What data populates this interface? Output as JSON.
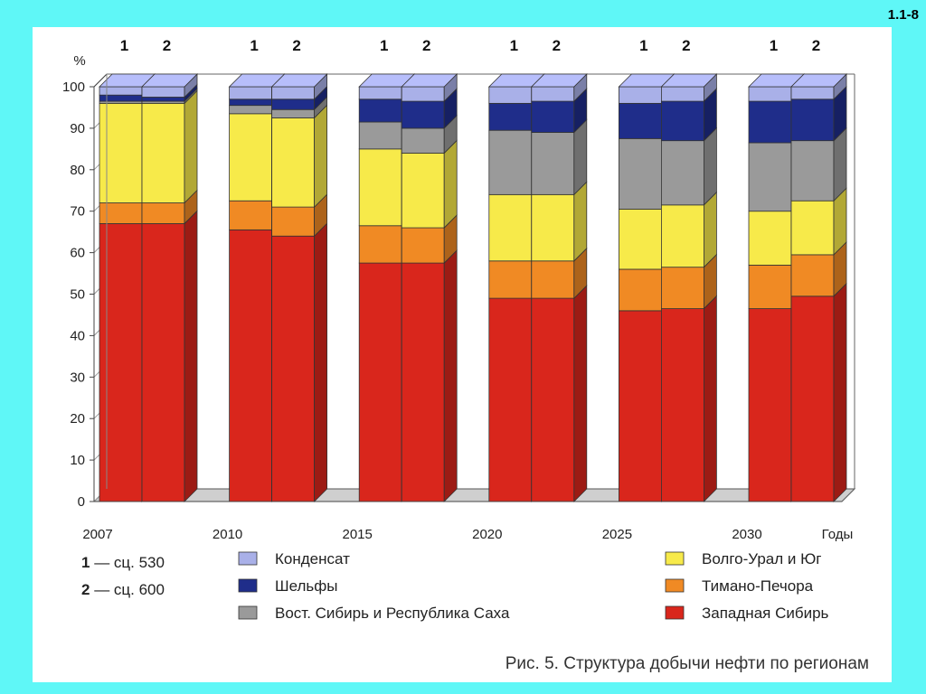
{
  "slide_id": "1.1-8",
  "caption": "Рис. 5. Структура добычи нефти по регионам",
  "scenario_legend": [
    {
      "num": "1",
      "text": "— сц. 530"
    },
    {
      "num": "2",
      "text": "— сц. 600"
    }
  ],
  "region_legend": [
    {
      "label": "Конденсат",
      "color": "#a9b0e8"
    },
    {
      "label": "Шельфы",
      "color": "#1f2d8a"
    },
    {
      "label": "Вост. Сибирь и Республика Саха",
      "color": "#9a9a9a"
    },
    {
      "label": "Волго-Урал и Юг",
      "color": "#f7ea4a"
    },
    {
      "label": "Тимано-Печора",
      "color": "#f08a24"
    },
    {
      "label": "Западная Сибирь",
      "color": "#d9261c"
    }
  ],
  "chart_data": {
    "type": "bar",
    "stacked": true,
    "three_d": true,
    "ylabel": "%",
    "xlabel": "Годы",
    "ylim": [
      0,
      100
    ],
    "yticks": [
      0,
      10,
      20,
      30,
      40,
      50,
      60,
      70,
      80,
      90,
      100
    ],
    "groups": [
      "2007",
      "2010",
      "2015",
      "2020",
      "2025",
      "2030"
    ],
    "bar_labels": [
      "1",
      "2"
    ],
    "series_order": [
      "Западная Сибирь",
      "Тимано-Печора",
      "Волго-Урал и Юг",
      "Вост. Сибирь и Республика Саха",
      "Шельфы",
      "Конденсат"
    ],
    "bars": [
      {
        "group": "2007",
        "bar": "1",
        "values": [
          67,
          5,
          24,
          0.5,
          1.5,
          2
        ]
      },
      {
        "group": "2007",
        "bar": "2",
        "values": [
          67,
          5,
          24,
          0.5,
          1,
          2.5
        ]
      },
      {
        "group": "2010",
        "bar": "1",
        "values": [
          65.5,
          7,
          21,
          2,
          1.5,
          3
        ]
      },
      {
        "group": "2010",
        "bar": "2",
        "values": [
          64,
          7,
          21.5,
          2,
          2.5,
          3
        ]
      },
      {
        "group": "2015",
        "bar": "1",
        "values": [
          57.5,
          9,
          18.5,
          6.5,
          5.5,
          3
        ]
      },
      {
        "group": "2015",
        "bar": "2",
        "values": [
          57.5,
          8.5,
          18,
          6,
          6.5,
          3.5
        ]
      },
      {
        "group": "2020",
        "bar": "1",
        "values": [
          49,
          9,
          16,
          15.5,
          6.5,
          4
        ]
      },
      {
        "group": "2020",
        "bar": "2",
        "values": [
          49,
          9,
          16,
          15,
          7.5,
          3.5
        ]
      },
      {
        "group": "2025",
        "bar": "1",
        "values": [
          46,
          10,
          14.5,
          17,
          8.5,
          4
        ]
      },
      {
        "group": "2025",
        "bar": "2",
        "values": [
          46.5,
          10,
          15,
          15.5,
          9.5,
          3.5
        ]
      },
      {
        "group": "2030",
        "bar": "1",
        "values": [
          46.5,
          10.5,
          13,
          16.5,
          10,
          3.5
        ]
      },
      {
        "group": "2030",
        "bar": "2",
        "values": [
          49.5,
          10,
          13,
          14.5,
          10,
          3
        ]
      }
    ]
  }
}
